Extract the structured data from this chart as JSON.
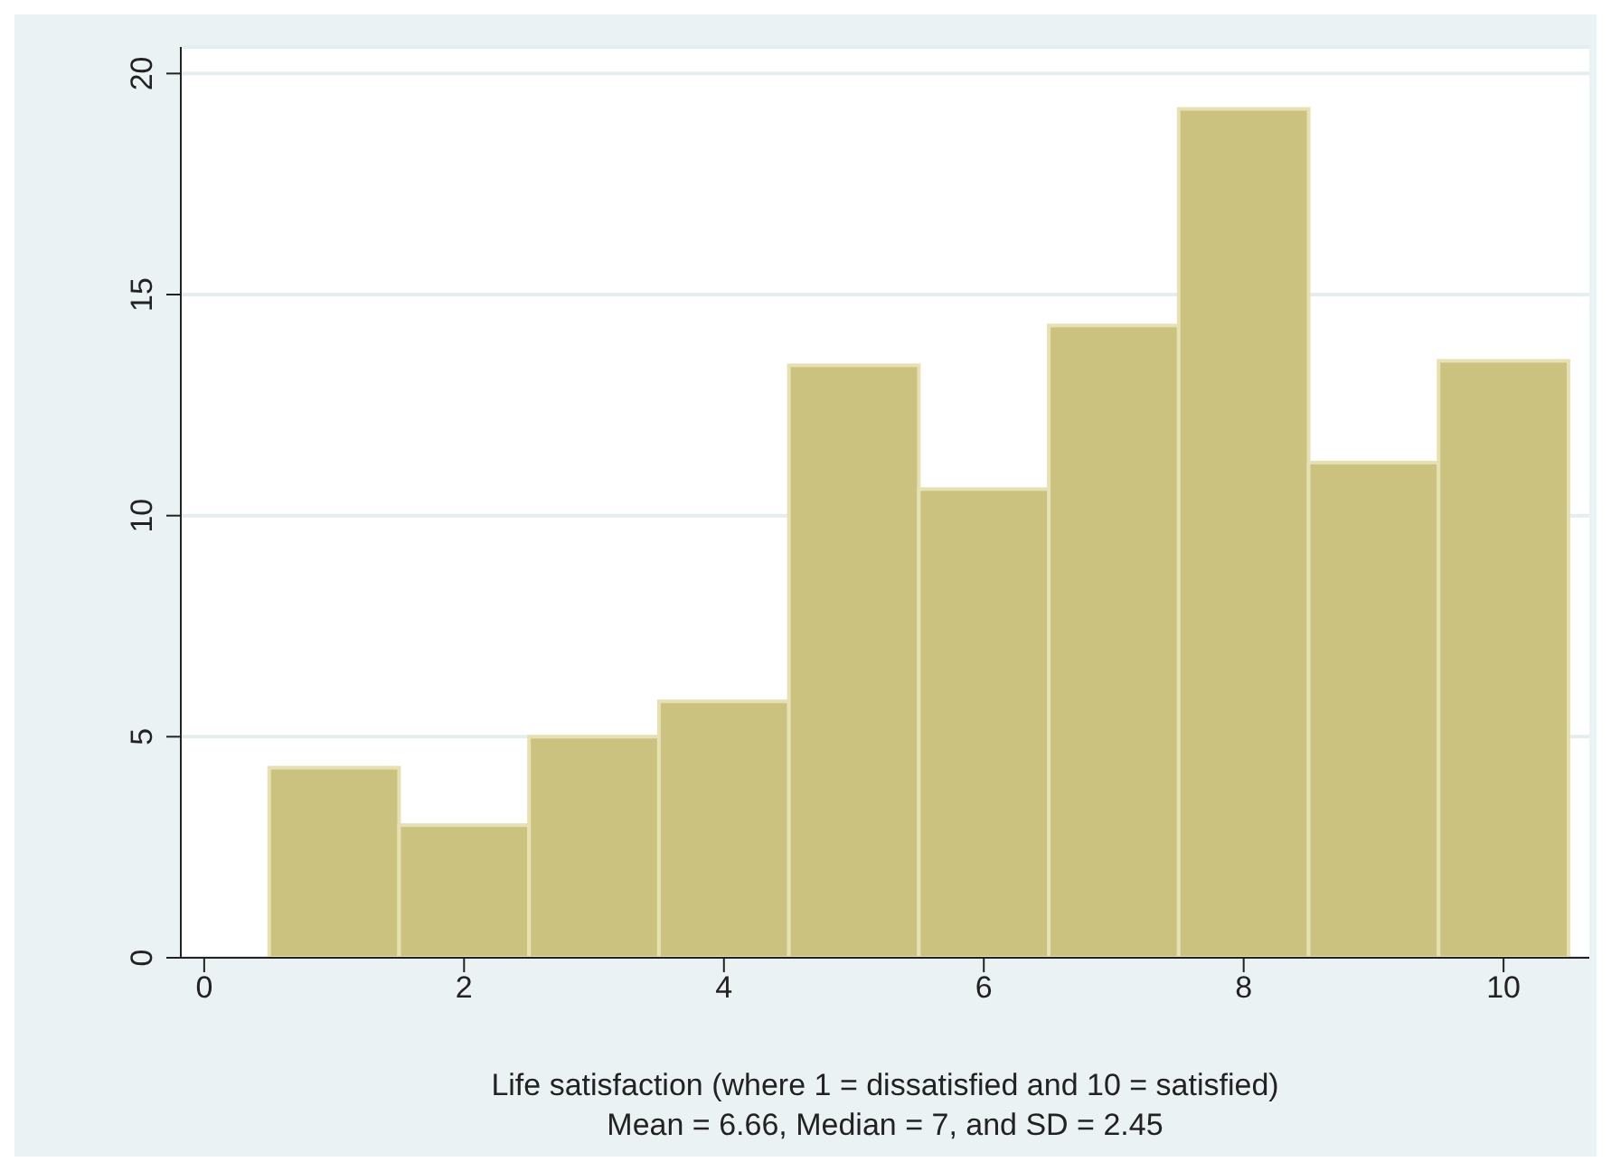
{
  "chart_data": {
    "type": "histogram",
    "xlabel": "Life satisfaction (where 1 = dissatisfied and 10 = satisfied)",
    "annotations": [
      "Mean = 6.66, Median = 7, and SD = 2.45"
    ],
    "bins": [
      0.5,
      1.5,
      2.5,
      3.5,
      4.5,
      5.5,
      6.5,
      7.5,
      8.5,
      9.5,
      10.5
    ],
    "values": [
      4.3,
      3.0,
      5.0,
      5.8,
      13.4,
      10.6,
      14.3,
      19.2,
      11.2,
      13.5
    ],
    "color": "#cbc27f",
    "xlim": [
      -0.18,
      10.66
    ],
    "xticks": [
      0,
      2,
      4,
      6,
      8,
      10
    ],
    "ylim": [
      0,
      20.6
    ],
    "yticks": [
      0,
      5,
      10,
      15,
      20
    ],
    "grid": "y"
  }
}
